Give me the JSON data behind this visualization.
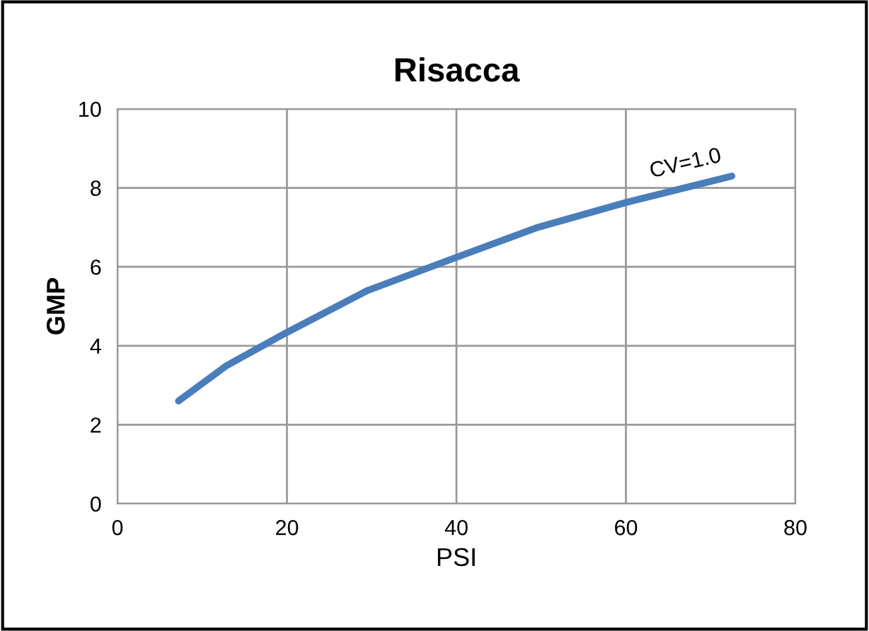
{
  "chart_data": {
    "type": "line",
    "title": "Risacca",
    "xlabel": "PSI",
    "ylabel": "GMP",
    "x": [
      7.2,
      12.9,
      20,
      29.5,
      40,
      49.6,
      60,
      72.5
    ],
    "series": [
      {
        "color": "#4a7ebb",
        "values": [
          2.6,
          3.5,
          4.34,
          5.4,
          6.24,
          7.0,
          7.63,
          8.3
        ]
      }
    ],
    "xlim": [
      0,
      80
    ],
    "ylim": [
      0,
      10
    ],
    "xticks": [
      0,
      20,
      40,
      60,
      80
    ],
    "yticks": [
      0,
      2,
      4,
      6,
      8,
      10
    ],
    "grid": true,
    "legend": false,
    "marker": "none",
    "line_style": "solid",
    "annotations": [
      "CV=1.0"
    ]
  }
}
